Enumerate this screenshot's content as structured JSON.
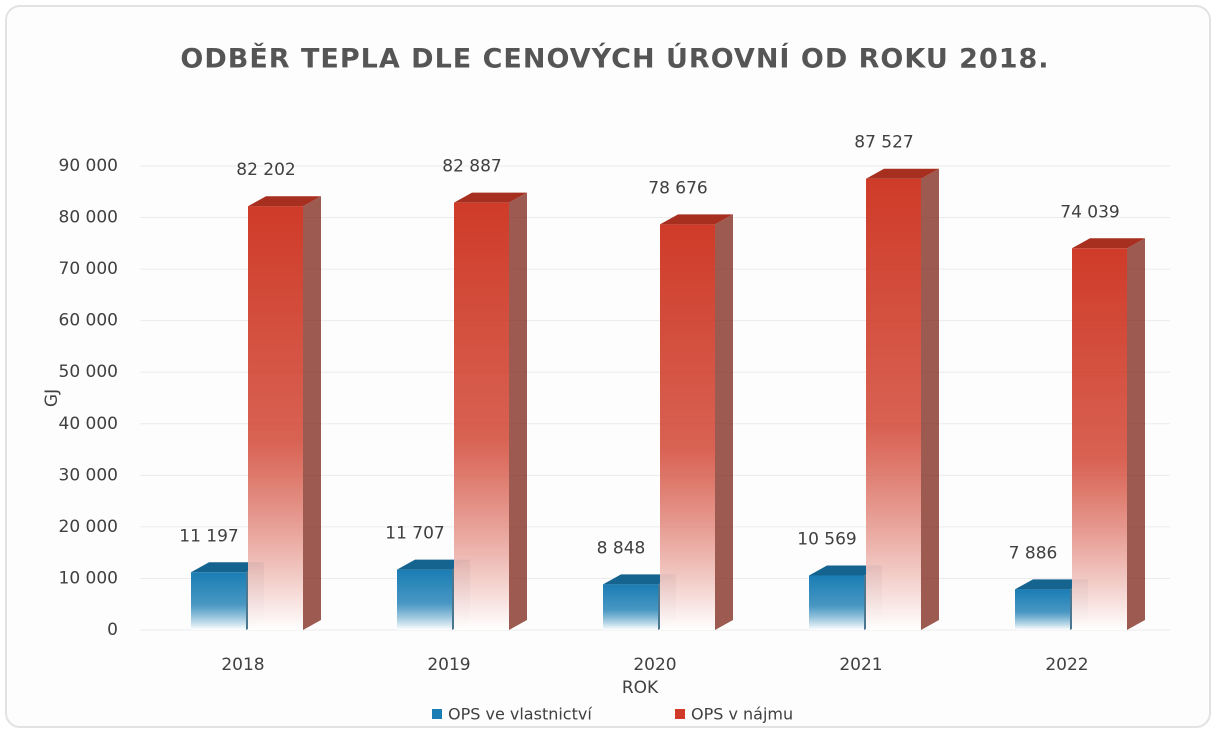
{
  "chart_data": {
    "type": "bar3d",
    "title": "ODBĚR TEPLA DLE CENOVÝCH ÚROVNÍ OD ROKU 2018.",
    "x_label": "ROK",
    "y_label": "GJ",
    "categories": [
      "2018",
      "2019",
      "2020",
      "2021",
      "2022"
    ],
    "series": [
      {
        "name": "OPS ve vlastnictví",
        "color": "#1a7db4",
        "values": [
          11197,
          11707,
          8848,
          10569,
          7886
        ],
        "value_labels": [
          "11 197",
          "11 707",
          "8 848",
          "10 569",
          "7 886"
        ]
      },
      {
        "name": "OPS v nájmu",
        "color": "#cf3b28",
        "values": [
          82202,
          82887,
          78676,
          87527,
          74039
        ],
        "value_labels": [
          "82 202",
          "82 887",
          "78 676",
          "87 527",
          "74 039"
        ]
      }
    ],
    "ylim": [
      0,
      90000
    ],
    "yticks": [
      0,
      {
        "value": 10000,
        "label": "10 000"
      },
      {
        "value": 20000,
        "label": "20 000"
      },
      {
        "value": 30000,
        "label": "30 000"
      },
      {
        "value": 40000,
        "label": "40 000"
      },
      {
        "value": 50000,
        "label": "50 000"
      },
      {
        "value": 60000,
        "label": "60 000"
      },
      {
        "value": 70000,
        "label": "70 000"
      },
      {
        "value": 80000,
        "label": "80 000"
      },
      {
        "value": 90000,
        "label": "90 000"
      }
    ],
    "grid": true,
    "legend": "bottom"
  }
}
